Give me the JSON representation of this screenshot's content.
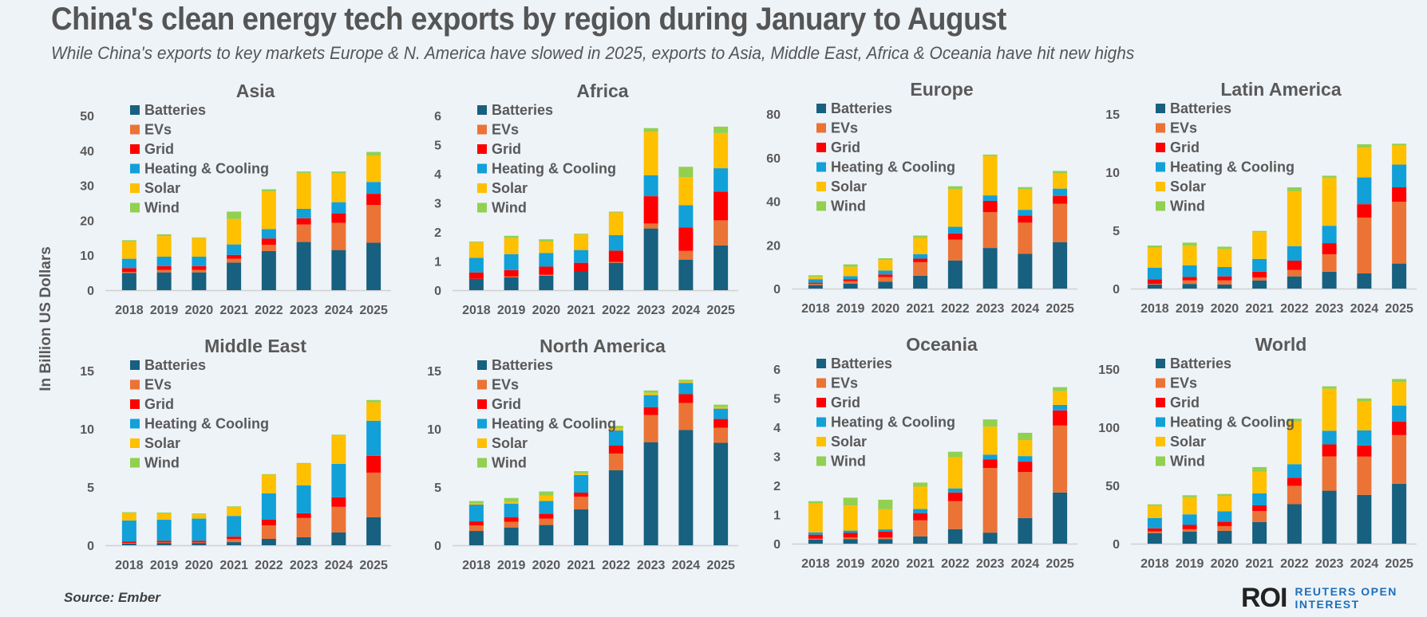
{
  "title": "China's clean energy tech exports by region during January to August",
  "subtitle": "While China's exports to key markets Europe & N. America have slowed in 2025, exports to Asia, Middle East, Africa & Oceania have hit new highs",
  "ylabel": "In Billion US Dollars",
  "source": "Source: Ember",
  "logo": {
    "mark": "ROI",
    "line1": "REUTERS OPEN",
    "line2": "INTEREST"
  },
  "chart_data": [
    {
      "type": "bar",
      "stacked": true,
      "title": "Asia",
      "categories": [
        "2018",
        "2019",
        "2020",
        "2021",
        "2022",
        "2023",
        "2024",
        "2025"
      ],
      "ylim": [
        0,
        50
      ],
      "yticks": [
        0,
        10,
        20,
        30,
        40,
        50
      ],
      "legend": "top-left",
      "series": [
        {
          "name": "Batteries",
          "color": "#17607f",
          "values": [
            4.9,
            5.1,
            5.1,
            7.9,
            11.2,
            13.8,
            11.5,
            13.6
          ]
        },
        {
          "name": "EVs",
          "color": "#eb7335",
          "values": [
            0.3,
            0.7,
            0.7,
            1.1,
            1.8,
            5.0,
            7.8,
            10.8
          ]
        },
        {
          "name": "Grid",
          "color": "#ff0000",
          "values": [
            1.1,
            1.1,
            1.1,
            1.1,
            1.8,
            1.8,
            2.7,
            3.2
          ]
        },
        {
          "name": "Heating & Cooling",
          "color": "#12a0d8",
          "values": [
            2.7,
            2.7,
            2.7,
            3.0,
            2.7,
            2.7,
            3.2,
            3.4
          ]
        },
        {
          "name": "Solar",
          "color": "#ffc000",
          "values": [
            4.9,
            5.9,
            5.3,
            7.3,
            10.8,
            10.3,
            8.2,
            7.5
          ]
        },
        {
          "name": "Wind",
          "color": "#92d050",
          "values": [
            0.4,
            0.5,
            0.2,
            2.1,
            0.6,
            0.4,
            0.6,
            1.1
          ]
        }
      ]
    },
    {
      "type": "bar",
      "stacked": true,
      "title": "Africa",
      "categories": [
        "2018",
        "2019",
        "2020",
        "2021",
        "2022",
        "2023",
        "2024",
        "2025"
      ],
      "ylim": [
        0,
        6
      ],
      "yticks": [
        0,
        1,
        2,
        3,
        4,
        5,
        6
      ],
      "legend": "top-left",
      "series": [
        {
          "name": "Batteries",
          "color": "#17607f",
          "values": [
            0.39,
            0.44,
            0.5,
            0.63,
            0.94,
            2.12,
            1.05,
            1.54
          ]
        },
        {
          "name": "EVs",
          "color": "#eb7335",
          "values": [
            0.0,
            0.03,
            0.03,
            0.0,
            0.03,
            0.17,
            0.3,
            0.86
          ]
        },
        {
          "name": "Grid",
          "color": "#ff0000",
          "values": [
            0.22,
            0.22,
            0.28,
            0.31,
            0.39,
            0.94,
            0.8,
            0.99
          ]
        },
        {
          "name": "Heating & Cooling",
          "color": "#12a0d8",
          "values": [
            0.5,
            0.55,
            0.47,
            0.44,
            0.53,
            0.72,
            0.77,
            0.8
          ]
        },
        {
          "name": "Solar",
          "color": "#ffc000",
          "values": [
            0.53,
            0.55,
            0.39,
            0.53,
            0.78,
            1.49,
            0.96,
            1.21
          ]
        },
        {
          "name": "Wind",
          "color": "#92d050",
          "values": [
            0.03,
            0.08,
            0.08,
            0.03,
            0.03,
            0.13,
            0.36,
            0.22
          ]
        }
      ]
    },
    {
      "type": "bar",
      "stacked": true,
      "title": "Europe",
      "categories": [
        "2018",
        "2019",
        "2020",
        "2021",
        "2022",
        "2023",
        "2024",
        "2025"
      ],
      "ylim": [
        0,
        80
      ],
      "yticks": [
        0,
        20,
        40,
        60,
        80
      ],
      "legend": "top-left",
      "series": [
        {
          "name": "Batteries",
          "color": "#17607f",
          "values": [
            1.6,
            2.2,
            3.1,
            5.9,
            12.9,
            18.6,
            15.9,
            21.3
          ]
        },
        {
          "name": "EVs",
          "color": "#eb7335",
          "values": [
            0.6,
            1.2,
            2.2,
            6.2,
            9.5,
            16.4,
            14.3,
            17.6
          ]
        },
        {
          "name": "Grid",
          "color": "#ff0000",
          "values": [
            0.5,
            0.8,
            1.2,
            1.6,
            2.9,
            5.2,
            3.3,
            3.6
          ]
        },
        {
          "name": "Heating & Cooling",
          "color": "#12a0d8",
          "values": [
            1.6,
            1.5,
            1.8,
            2.1,
            3.0,
            2.5,
            2.6,
            3.3
          ]
        },
        {
          "name": "Solar",
          "color": "#ffc000",
          "values": [
            1.1,
            4.3,
            4.8,
            7.4,
            17.1,
            18.0,
            9.3,
            7.0
          ]
        },
        {
          "name": "Wind",
          "color": "#92d050",
          "values": [
            0.7,
            1.1,
            0.8,
            1.1,
            1.5,
            0.7,
            1.1,
            1.1
          ]
        }
      ]
    },
    {
      "type": "bar",
      "stacked": true,
      "title": "Latin America",
      "categories": [
        "2018",
        "2019",
        "2020",
        "2021",
        "2022",
        "2023",
        "2024",
        "2025"
      ],
      "ylim": [
        0,
        15
      ],
      "yticks": [
        0,
        5,
        10,
        15
      ],
      "legend": "top-left",
      "series": [
        {
          "name": "Batteries",
          "color": "#17607f",
          "values": [
            0.35,
            0.4,
            0.35,
            0.7,
            1.05,
            1.45,
            1.3,
            2.15
          ]
        },
        {
          "name": "EVs",
          "color": "#eb7335",
          "values": [
            0.05,
            0.3,
            0.35,
            0.25,
            0.55,
            1.5,
            4.8,
            5.3
          ]
        },
        {
          "name": "Grid",
          "color": "#ff0000",
          "values": [
            0.4,
            0.3,
            0.35,
            0.5,
            0.8,
            0.95,
            1.15,
            1.25
          ]
        },
        {
          "name": "Heating & Cooling",
          "color": "#12a0d8",
          "values": [
            1.0,
            1.0,
            0.8,
            1.1,
            1.25,
            1.5,
            2.3,
            1.95
          ]
        },
        {
          "name": "Solar",
          "color": "#ffc000",
          "values": [
            1.7,
            1.65,
            1.55,
            2.3,
            4.7,
            4.1,
            2.55,
            1.65
          ]
        },
        {
          "name": "Wind",
          "color": "#92d050",
          "values": [
            0.2,
            0.3,
            0.2,
            0.1,
            0.35,
            0.2,
            0.3,
            0.15
          ]
        }
      ]
    },
    {
      "type": "bar",
      "stacked": true,
      "title": "Middle East",
      "categories": [
        "2018",
        "2019",
        "2020",
        "2021",
        "2022",
        "2023",
        "2024",
        "2025"
      ],
      "ylim": [
        0,
        15
      ],
      "yticks": [
        0,
        5,
        10,
        15
      ],
      "legend": "top-left",
      "series": [
        {
          "name": "Batteries",
          "color": "#17607f",
          "values": [
            0.14,
            0.2,
            0.2,
            0.27,
            0.55,
            0.69,
            1.1,
            2.4
          ]
        },
        {
          "name": "EVs",
          "color": "#eb7335",
          "values": [
            0.05,
            0.05,
            0.05,
            0.27,
            1.16,
            1.65,
            2.2,
            3.84
          ]
        },
        {
          "name": "Grid",
          "color": "#ff0000",
          "values": [
            0.14,
            0.14,
            0.14,
            0.2,
            0.48,
            0.41,
            0.82,
            1.44
          ]
        },
        {
          "name": "Heating & Cooling",
          "color": "#12a0d8",
          "values": [
            1.8,
            1.8,
            1.9,
            1.78,
            2.27,
            2.4,
            2.88,
            3.02
          ]
        },
        {
          "name": "Solar",
          "color": "#ffc000",
          "values": [
            0.64,
            0.55,
            0.37,
            0.78,
            1.6,
            1.87,
            2.43,
            1.58
          ]
        },
        {
          "name": "Wind",
          "color": "#92d050",
          "values": [
            0.07,
            0.07,
            0.07,
            0.05,
            0.05,
            0.05,
            0.07,
            0.2
          ]
        }
      ]
    },
    {
      "type": "bar",
      "stacked": true,
      "title": "North America",
      "categories": [
        "2018",
        "2019",
        "2020",
        "2021",
        "2022",
        "2023",
        "2024",
        "2025"
      ],
      "ylim": [
        0,
        15
      ],
      "yticks": [
        0,
        5,
        10,
        15
      ],
      "legend": "top-left",
      "series": [
        {
          "name": "Batteries",
          "color": "#17607f",
          "values": [
            1.23,
            1.53,
            1.74,
            3.08,
            6.44,
            8.86,
            9.9,
            8.8
          ]
        },
        {
          "name": "EVs",
          "color": "#eb7335",
          "values": [
            0.48,
            0.48,
            0.55,
            1.1,
            1.44,
            2.33,
            2.33,
            1.3
          ]
        },
        {
          "name": "Grid",
          "color": "#ff0000",
          "values": [
            0.34,
            0.41,
            0.41,
            0.34,
            0.68,
            0.68,
            0.75,
            0.75
          ]
        },
        {
          "name": "Heating & Cooling",
          "color": "#12a0d8",
          "values": [
            1.44,
            1.16,
            1.1,
            1.51,
            1.3,
            1.03,
            0.96,
            0.89
          ]
        },
        {
          "name": "Solar",
          "color": "#ffc000",
          "values": [
            0.11,
            0.14,
            0.48,
            0.14,
            0.2,
            0.2,
            0.14,
            0.14
          ]
        },
        {
          "name": "Wind",
          "color": "#92d050",
          "values": [
            0.2,
            0.34,
            0.34,
            0.2,
            0.2,
            0.2,
            0.14,
            0.2
          ]
        }
      ]
    },
    {
      "type": "bar",
      "stacked": true,
      "title": "Oceania",
      "categories": [
        "2018",
        "2019",
        "2020",
        "2021",
        "2022",
        "2023",
        "2024",
        "2025"
      ],
      "ylim": [
        0,
        6
      ],
      "yticks": [
        0,
        1,
        2,
        3,
        4,
        5,
        6
      ],
      "legend": "top-left",
      "series": [
        {
          "name": "Batteries",
          "color": "#17607f",
          "values": [
            0.14,
            0.16,
            0.16,
            0.25,
            0.5,
            0.38,
            0.88,
            1.76
          ]
        },
        {
          "name": "EVs",
          "color": "#eb7335",
          "values": [
            0.03,
            0.05,
            0.05,
            0.55,
            0.96,
            2.22,
            1.58,
            2.3
          ]
        },
        {
          "name": "Grid",
          "color": "#ff0000",
          "values": [
            0.14,
            0.16,
            0.2,
            0.25,
            0.3,
            0.3,
            0.36,
            0.52
          ]
        },
        {
          "name": "Heating & Cooling",
          "color": "#12a0d8",
          "values": [
            0.08,
            0.08,
            0.08,
            0.14,
            0.14,
            0.16,
            0.19,
            0.19
          ]
        },
        {
          "name": "Solar",
          "color": "#ffc000",
          "values": [
            0.99,
            0.86,
            0.69,
            0.77,
            1.07,
            0.96,
            0.55,
            0.47
          ]
        },
        {
          "name": "Wind",
          "color": "#92d050",
          "values": [
            0.08,
            0.27,
            0.33,
            0.14,
            0.19,
            0.25,
            0.25,
            0.14
          ]
        }
      ]
    },
    {
      "type": "bar",
      "stacked": true,
      "title": "World",
      "categories": [
        "2018",
        "2019",
        "2020",
        "2021",
        "2022",
        "2023",
        "2024",
        "2025"
      ],
      "ylim": [
        0,
        150
      ],
      "yticks": [
        0,
        50,
        100,
        150
      ],
      "legend": "top-left",
      "series": [
        {
          "name": "Batteries",
          "color": "#17607f",
          "values": [
            9.1,
            10.3,
            11.0,
            18.5,
            33.9,
            45.5,
            41.9,
            51.5
          ]
        },
        {
          "name": "EVs",
          "color": "#eb7335",
          "values": [
            1.4,
            2.1,
            4.1,
            9.6,
            15.8,
            29.5,
            32.9,
            41.8
          ]
        },
        {
          "name": "Grid",
          "color": "#ff0000",
          "values": [
            2.7,
            3.7,
            3.7,
            4.8,
            6.9,
            10.3,
            9.6,
            11.7
          ]
        },
        {
          "name": "Heating & Cooling",
          "color": "#12a0d8",
          "values": [
            8.9,
            9.1,
            9.1,
            10.3,
            11.7,
            11.7,
            13.0,
            13.7
          ]
        },
        {
          "name": "Solar",
          "color": "#ffc000",
          "values": [
            10.3,
            14.6,
            13.0,
            18.5,
            36.4,
            36.1,
            24.9,
            20.1
          ]
        },
        {
          "name": "Wind",
          "color": "#92d050",
          "values": [
            1.4,
            1.8,
            1.8,
            4.1,
            2.7,
            2.1,
            2.5,
            2.7
          ]
        }
      ]
    }
  ]
}
